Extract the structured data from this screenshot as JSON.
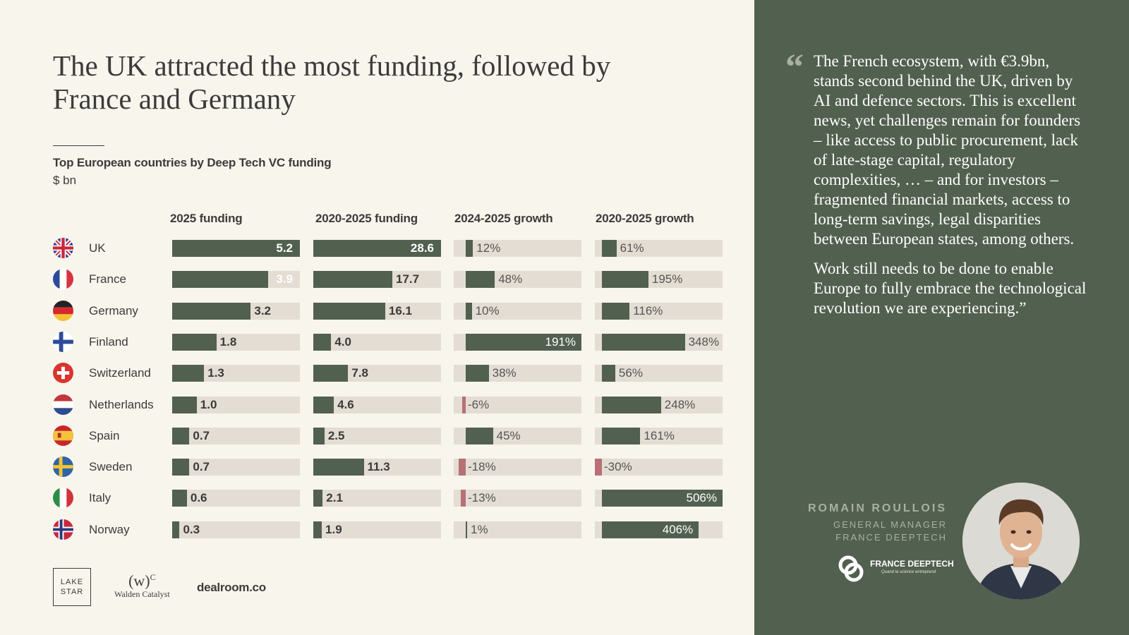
{
  "title": "The UK attracted the most funding, followed by France and Germany",
  "subtitle": "Top European countries by Deep Tech VC funding",
  "unit": "$ bn",
  "columns": [
    "2025 funding",
    "2020-2025 funding",
    "2024-2025 growth",
    "2020-2025 growth"
  ],
  "colors": {
    "bar": "#52604f",
    "negative": "#b87077",
    "track": "#e3ddd3",
    "panel": "#52604f",
    "background": "#f8f5ed"
  },
  "chart_data": {
    "type": "bar",
    "title": "Top European countries by Deep Tech VC funding",
    "ylabel": "$ bn",
    "categories": [
      "UK",
      "France",
      "Germany",
      "Finland",
      "Switzerland",
      "Netherlands",
      "Spain",
      "Sweden",
      "Italy",
      "Norway"
    ],
    "series": [
      {
        "name": "2025 funding",
        "values": [
          5.2,
          3.9,
          3.2,
          1.8,
          1.3,
          1.0,
          0.7,
          0.7,
          0.6,
          0.3
        ],
        "labels": [
          "5.2",
          "3.9",
          "3.2",
          "1.8",
          "1.3",
          "1.0",
          "0.7",
          "0.7",
          "0.6",
          "0.3"
        ]
      },
      {
        "name": "2020-2025 funding",
        "values": [
          28.6,
          17.7,
          16.1,
          4.0,
          7.8,
          4.6,
          2.5,
          11.3,
          2.1,
          1.9
        ],
        "labels": [
          "28.6",
          "17.7",
          "16.1",
          "4.0",
          "7.8",
          "4.6",
          "2.5",
          "11.3",
          "2.1",
          "1.9"
        ]
      },
      {
        "name": "2024-2025 growth",
        "values": [
          12,
          48,
          10,
          191,
          38,
          -6,
          45,
          -18,
          -13,
          1
        ],
        "labels": [
          "12%",
          "48%",
          "10%",
          "191%",
          "38%",
          "-6%",
          "45%",
          "-18%",
          "-13%",
          "1%"
        ]
      },
      {
        "name": "2020-2025 growth",
        "values": [
          61,
          195,
          116,
          348,
          56,
          248,
          161,
          -30,
          506,
          406
        ],
        "labels": [
          "61%",
          "195%",
          "116%",
          "348%",
          "56%",
          "248%",
          "161%",
          "-30%",
          "506%",
          "406%"
        ]
      }
    ]
  },
  "flags": [
    "uk-flag-icon",
    "france-flag-icon",
    "germany-flag-icon",
    "finland-flag-icon",
    "switzerland-flag-icon",
    "netherlands-flag-icon",
    "spain-flag-icon",
    "sweden-flag-icon",
    "italy-flag-icon",
    "norway-flag-icon"
  ],
  "logos": {
    "lake_star_line1": "LAKE",
    "lake_star_line2": "STAR",
    "walden_mark": "(w)",
    "walden_sup": "C",
    "walden_name": "Walden Catalyst",
    "dealroom": "dealroom.co"
  },
  "quote": {
    "mark": "“",
    "paragraph1": "The French ecosystem, with €3.9bn, stands second behind the UK, driven by AI and defence sectors. This is excellent news, yet challenges remain for founders – like access to public procurement, lack of late-stage capital, regulatory complexities, … – and for investors – fragmented financial markets, access to long-term savings, legal disparities between European states, among others.",
    "paragraph2": "Work still needs to be done to enable Europe to fully embrace the technological revolution we are experiencing.”"
  },
  "person": {
    "name": "ROMAIN ROULLOIS",
    "role_line1": "GENERAL MANAGER",
    "role_line2": "FRANCE DEEPTECH",
    "org_logo_text": "FRANCE DEEPTECH",
    "org_tagline": "Quand la science entreprend"
  }
}
